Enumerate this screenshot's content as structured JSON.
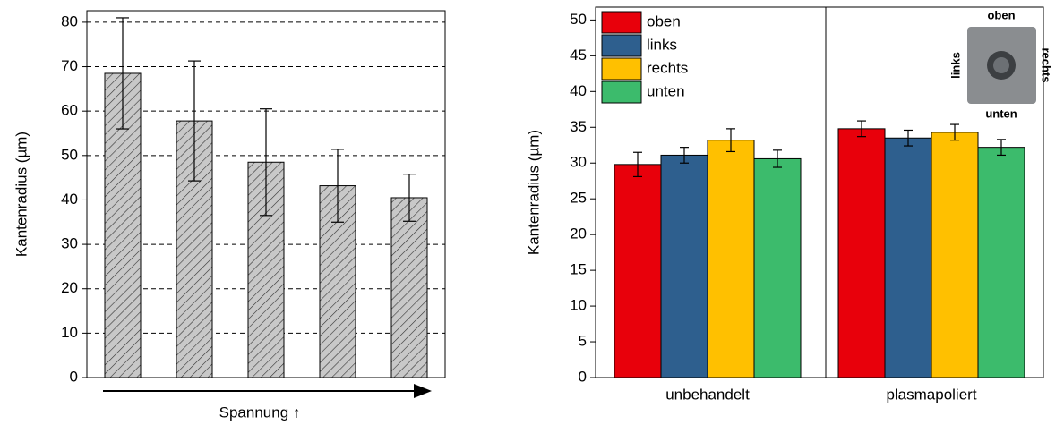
{
  "chart_data": [
    {
      "type": "bar",
      "categories": [
        null,
        null,
        null,
        null,
        null
      ],
      "values": [
        68.5,
        57.8,
        48.5,
        43.2,
        40.5
      ],
      "errors": [
        12.5,
        13.5,
        12,
        8.2,
        5.3
      ],
      "color": "#c8c8c8",
      "hatch": true,
      "ylabel": "Kantenradius (µm)",
      "xlabel": "Spannung ↑",
      "ylim": [
        0,
        82.6
      ],
      "yticks": [
        0,
        10,
        20,
        30,
        40,
        50,
        60,
        70,
        80
      ],
      "grid": true
    },
    {
      "type": "bar",
      "categories": [
        "unbehandelt",
        "plasmapoliert"
      ],
      "series": [
        {
          "name": "oben",
          "color": "#e8000b",
          "values": [
            29.8,
            34.8
          ],
          "errors": [
            1.7,
            1.1
          ]
        },
        {
          "name": "links",
          "color": "#2e5f8e",
          "values": [
            31.1,
            33.5
          ],
          "errors": [
            1.1,
            1.1
          ]
        },
        {
          "name": "rechts",
          "color": "#ffc000",
          "values": [
            33.2,
            34.3
          ],
          "errors": [
            1.6,
            1.1
          ]
        },
        {
          "name": "unten",
          "color": "#3cbb6c",
          "values": [
            30.6,
            32.2
          ],
          "errors": [
            1.2,
            1.1
          ]
        }
      ],
      "ylabel": "Kantenradius (µm)",
      "ylim": [
        0,
        51.8
      ],
      "yticks": [
        0,
        5,
        10,
        15,
        20,
        25,
        30,
        35,
        40,
        45,
        50
      ],
      "grid": false,
      "legend": "upper-left",
      "inset_labels": [
        "oben",
        "links",
        "rechts",
        "unten"
      ]
    }
  ]
}
